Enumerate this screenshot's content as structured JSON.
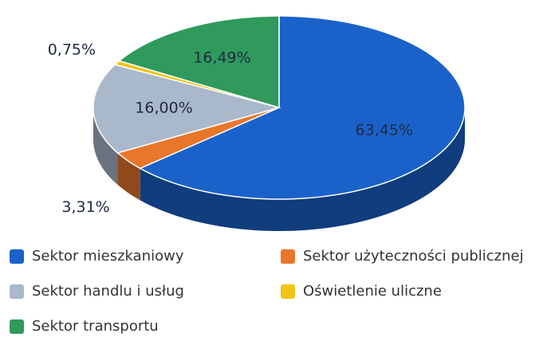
{
  "chart_data": {
    "type": "pie3d",
    "categories": [
      "Sektor mieszkaniowy",
      "Sektor użyteczności publicznej",
      "Sektor handlu i usług",
      "Oświetlenie uliczne",
      "Sektor transportu"
    ],
    "values": [
      63.45,
      3.31,
      16.0,
      0.75,
      16.49
    ],
    "value_labels": [
      "63,45%",
      "3,31%",
      "16,00%",
      "0,75%",
      "16,49%"
    ],
    "colors": [
      "#1a62c9",
      "#e8762b",
      "#aab8cb",
      "#f2c417",
      "#2f9a5c"
    ],
    "legend": "bottom"
  }
}
